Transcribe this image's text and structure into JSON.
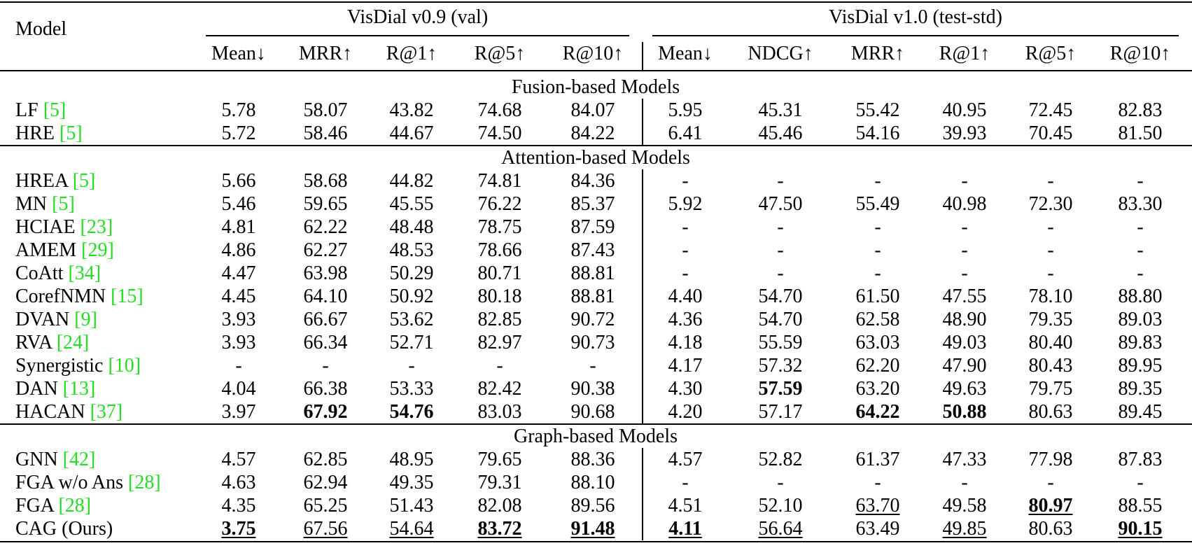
{
  "header": {
    "model": "Model",
    "groups": [
      {
        "title": "VisDial v0.9 (val)",
        "columns": [
          "Mean↓",
          "MRR↑",
          "R@1↑",
          "R@5↑",
          "R@10↑"
        ]
      },
      {
        "title": "VisDial v1.0 (test-std)",
        "columns": [
          "Mean↓",
          "NDCG↑",
          "MRR↑",
          "R@1↑",
          "R@5↑",
          "R@10↑"
        ]
      }
    ]
  },
  "sections": [
    {
      "title": "Fusion-based Models",
      "rows": [
        {
          "model": "LF",
          "ref": "[5]",
          "cells": [
            "5.78",
            "58.07",
            "43.82",
            "74.68",
            "84.07",
            "5.95",
            "45.31",
            "55.42",
            "40.95",
            "72.45",
            "82.83"
          ]
        },
        {
          "model": "HRE",
          "ref": "[5]",
          "cells": [
            "5.72",
            "58.46",
            "44.67",
            "74.50",
            "84.22",
            "6.41",
            "45.46",
            "54.16",
            "39.93",
            "70.45",
            "81.50"
          ]
        }
      ]
    },
    {
      "title": "Attention-based Models",
      "rows": [
        {
          "model": "HREA",
          "ref": "[5]",
          "cells": [
            "5.66",
            "58.68",
            "44.82",
            "74.81",
            "84.36",
            "-",
            "-",
            "-",
            "-",
            "-",
            "-"
          ]
        },
        {
          "model": "MN",
          "ref": "[5]",
          "cells": [
            "5.46",
            "59.65",
            "45.55",
            "76.22",
            "85.37",
            "5.92",
            "47.50",
            "55.49",
            "40.98",
            "72.30",
            "83.30"
          ]
        },
        {
          "model": "HCIAE",
          "ref": "[23]",
          "cells": [
            "4.81",
            "62.22",
            "48.48",
            "78.75",
            "87.59",
            "-",
            "-",
            "-",
            "-",
            "-",
            "-"
          ]
        },
        {
          "model": "AMEM",
          "ref": "[29]",
          "cells": [
            "4.86",
            "62.27",
            "48.53",
            "78.66",
            "87.43",
            "-",
            "-",
            "-",
            "-",
            "-",
            "-"
          ]
        },
        {
          "model": "CoAtt",
          "ref": "[34]",
          "cells": [
            "4.47",
            "63.98",
            "50.29",
            "80.71",
            "88.81",
            "-",
            "-",
            "-",
            "-",
            "-",
            "-"
          ]
        },
        {
          "model": "CorefNMN",
          "ref": "[15]",
          "cells": [
            "4.45",
            "64.10",
            "50.92",
            "80.18",
            "88.81",
            "4.40",
            "54.70",
            "61.50",
            "47.55",
            "78.10",
            "88.80"
          ]
        },
        {
          "model": "DVAN",
          "ref": "[9]",
          "cells": [
            "3.93",
            "66.67",
            "53.62",
            "82.85",
            "90.72",
            "4.36",
            "54.70",
            "62.58",
            "48.90",
            "79.35",
            "89.03"
          ]
        },
        {
          "model": "RVA",
          "ref": "[24]",
          "cells": [
            "3.93",
            "66.34",
            "52.71",
            "82.97",
            "90.73",
            "4.18",
            "55.59",
            "63.03",
            "49.03",
            "80.40",
            "89.83"
          ]
        },
        {
          "model": "Synergistic",
          "ref": "[10]",
          "cells": [
            "-",
            "-",
            "-",
            "-",
            "-",
            "4.17",
            "57.32",
            "62.20",
            "47.90",
            "80.43",
            "89.95"
          ]
        },
        {
          "model": "DAN",
          "ref": "[13]",
          "cells": [
            "4.04",
            "66.38",
            "53.33",
            "82.42",
            "90.38",
            "4.30",
            "57.59",
            "63.20",
            "49.63",
            "79.75",
            "89.35"
          ],
          "bold": [
            6
          ]
        },
        {
          "model": "HACAN",
          "ref": "[37]",
          "cells": [
            "3.97",
            "67.92",
            "54.76",
            "83.03",
            "90.68",
            "4.20",
            "57.17",
            "64.22",
            "50.88",
            "80.63",
            "89.45"
          ],
          "bold": [
            1,
            2,
            7,
            8
          ]
        }
      ]
    },
    {
      "title": "Graph-based Models",
      "rows": [
        {
          "model": "GNN",
          "ref": "[42]",
          "cells": [
            "4.57",
            "62.85",
            "48.95",
            "79.65",
            "88.36",
            "4.57",
            "52.82",
            "61.37",
            "47.33",
            "77.98",
            "87.83"
          ]
        },
        {
          "model": "FGA w/o Ans",
          "ref": "[28]",
          "cells": [
            "4.63",
            "62.94",
            "49.35",
            "79.31",
            "88.10",
            "-",
            "-",
            "-",
            "-",
            "-",
            "-"
          ]
        },
        {
          "model": "FGA",
          "ref": "[28]",
          "cells": [
            "4.35",
            "65.25",
            "51.43",
            "82.08",
            "89.56",
            "4.51",
            "52.10",
            "63.70",
            "49.58",
            "80.97",
            "88.55"
          ],
          "bold": [
            9
          ],
          "underline": [
            7,
            9
          ]
        },
        {
          "model": "CAG (Ours)",
          "cells": [
            "3.75",
            "67.56",
            "54.64",
            "83.72",
            "91.48",
            "4.11",
            "56.64",
            "63.49",
            "49.85",
            "80.63",
            "90.15"
          ],
          "bold": [
            0,
            3,
            4,
            5,
            10
          ],
          "underline": [
            0,
            1,
            2,
            3,
            4,
            5,
            6,
            8,
            10
          ]
        }
      ]
    }
  ]
}
